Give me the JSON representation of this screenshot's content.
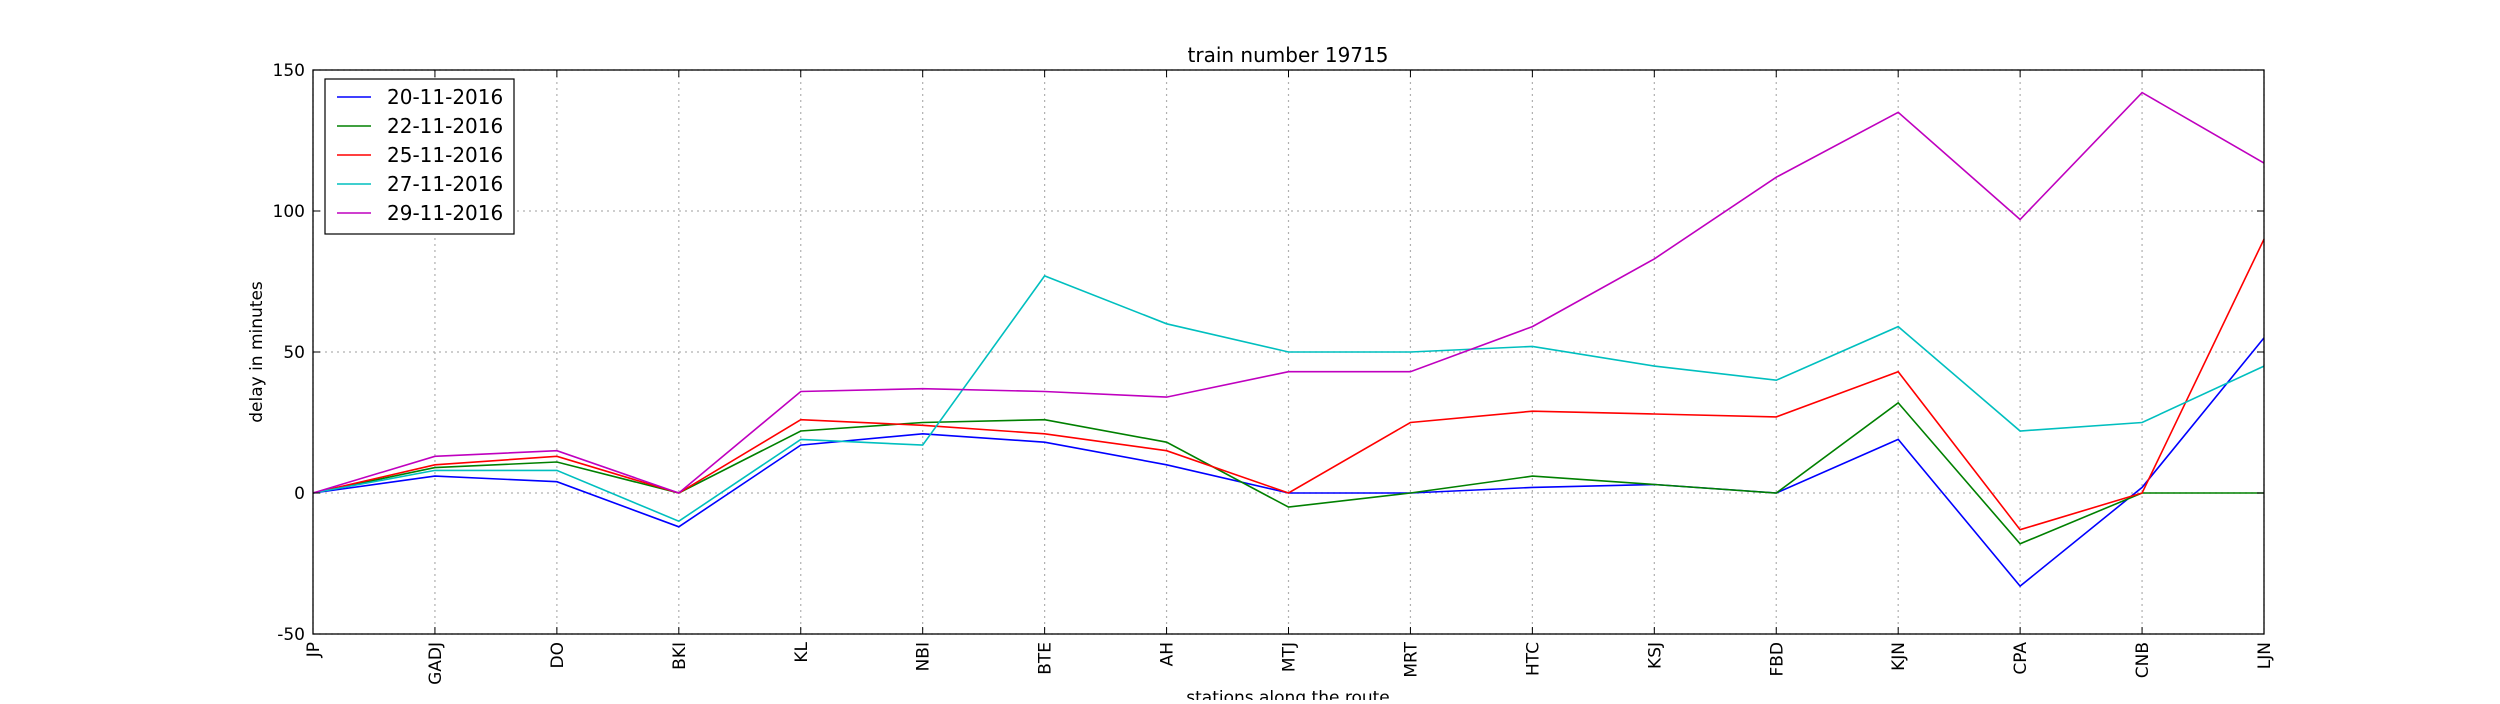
{
  "chart_data": {
    "type": "line",
    "title": "train number 19715",
    "xlabel": "stations along the route",
    "ylabel": "delay in minutes",
    "categories": [
      "JP",
      "GADJ",
      "DO",
      "BKI",
      "KL",
      "NBI",
      "BTE",
      "AH",
      "MTJ",
      "MRT",
      "HTC",
      "KSJ",
      "FBD",
      "KJN",
      "CPA",
      "CNB",
      "LJN"
    ],
    "ylim": [
      -50,
      150
    ],
    "yticks": [
      -50,
      0,
      50,
      100,
      150
    ],
    "grid": true,
    "legend_position": "top-left",
    "series": [
      {
        "name": "20-11-2016",
        "color": "#0000ff",
        "values": [
          0,
          6,
          4,
          -12,
          17,
          21,
          18,
          10,
          0,
          0,
          2,
          3,
          0,
          19,
          -33,
          2,
          55
        ]
      },
      {
        "name": "22-11-2016",
        "color": "#008000",
        "values": [
          0,
          9,
          11,
          0,
          22,
          25,
          26,
          18,
          -5,
          0,
          6,
          3,
          0,
          32,
          -18,
          0,
          0
        ]
      },
      {
        "name": "25-11-2016",
        "color": "#ff0000",
        "values": [
          0,
          10,
          13,
          0,
          26,
          24,
          21,
          15,
          0,
          25,
          29,
          28,
          27,
          43,
          -13,
          0,
          90
        ]
      },
      {
        "name": "27-11-2016",
        "color": "#00bfbf",
        "values": [
          0,
          8,
          8,
          -10,
          19,
          17,
          77,
          60,
          50,
          50,
          52,
          45,
          40,
          59,
          22,
          25,
          45
        ]
      },
      {
        "name": "29-11-2016",
        "color": "#bf00bf",
        "values": [
          0,
          13,
          15,
          0,
          36,
          37,
          36,
          34,
          43,
          43,
          59,
          83,
          112,
          135,
          97,
          142,
          117
        ]
      }
    ]
  }
}
